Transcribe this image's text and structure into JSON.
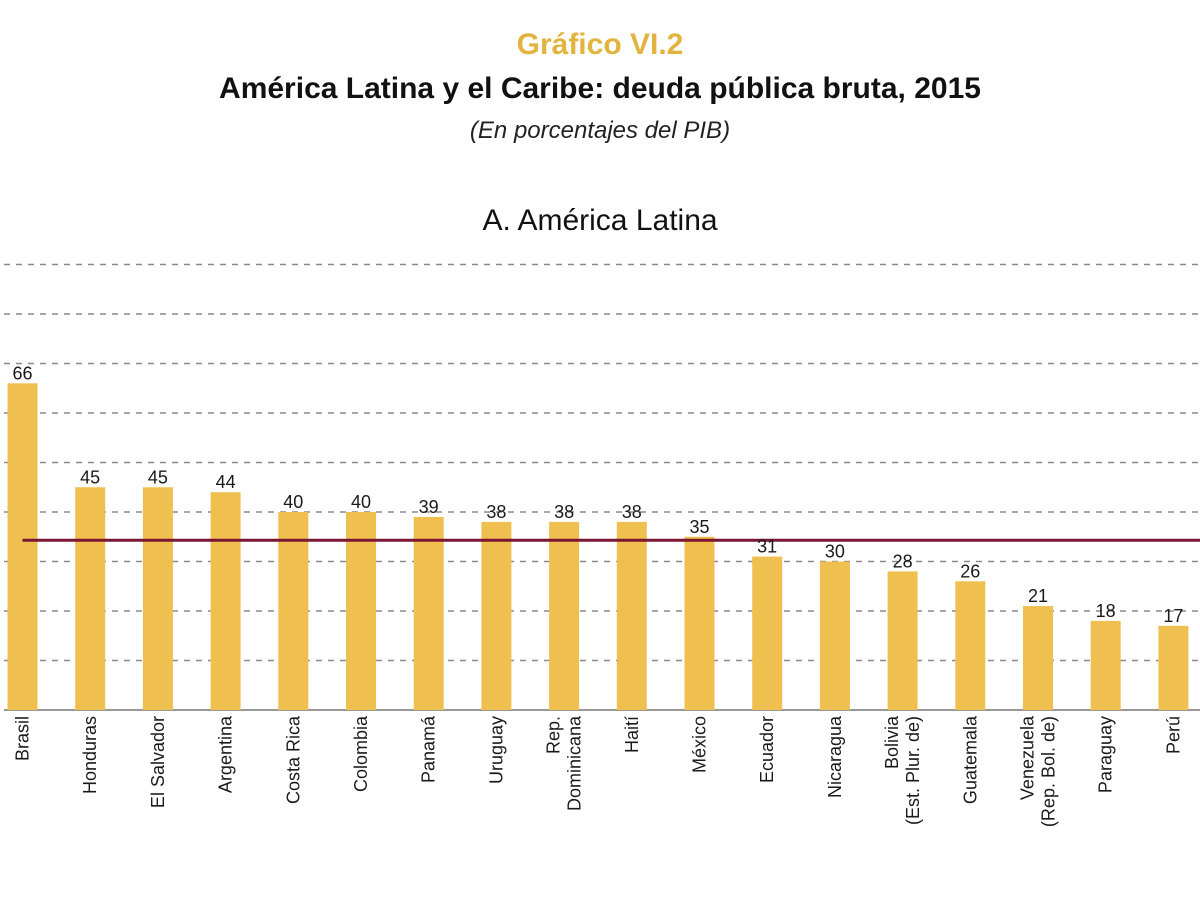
{
  "header": {
    "kicker": "Gráfico VI.2",
    "title": "América Latina y el Caribe: deuda pública bruta, 2015",
    "subtitle": "(En porcentajes del PIB)"
  },
  "chart_data": {
    "type": "bar",
    "title": "A. América Latina",
    "categories": [
      [
        "Brasil"
      ],
      [
        "Honduras"
      ],
      [
        "El Salvador"
      ],
      [
        "Argentina"
      ],
      [
        "Costa Rica"
      ],
      [
        "Colombia"
      ],
      [
        "Panamá"
      ],
      [
        "Uruguay"
      ],
      [
        "Rep.",
        "Dominicana"
      ],
      [
        "Haití"
      ],
      [
        "México"
      ],
      [
        "Ecuador"
      ],
      [
        "Nicaragua"
      ],
      [
        "Bolivia",
        "(Est. Plur. de)"
      ],
      [
        "Guatemala"
      ],
      [
        "Venezuela",
        "(Rep. Bol. de)"
      ],
      [
        "Paraguay"
      ],
      [
        "Perú"
      ]
    ],
    "values": [
      66,
      45,
      45,
      44,
      40,
      40,
      39,
      38,
      38,
      38,
      35,
      31,
      30,
      28,
      26,
      21,
      18,
      17
    ],
    "value_labels": [
      "66",
      "45",
      "45",
      "44",
      "40",
      "40",
      "39",
      "38",
      "38",
      "38",
      "35",
      "31",
      "30",
      "28",
      "26",
      "21",
      "18",
      "17"
    ],
    "reference_line": {
      "value": 34.3
    },
    "ylim": [
      0,
      90
    ],
    "grid_step": 10,
    "grid": true,
    "colors": {
      "bar": "#efc04f",
      "reference": "#7a1634",
      "grid": "#8a8a8a"
    }
  }
}
